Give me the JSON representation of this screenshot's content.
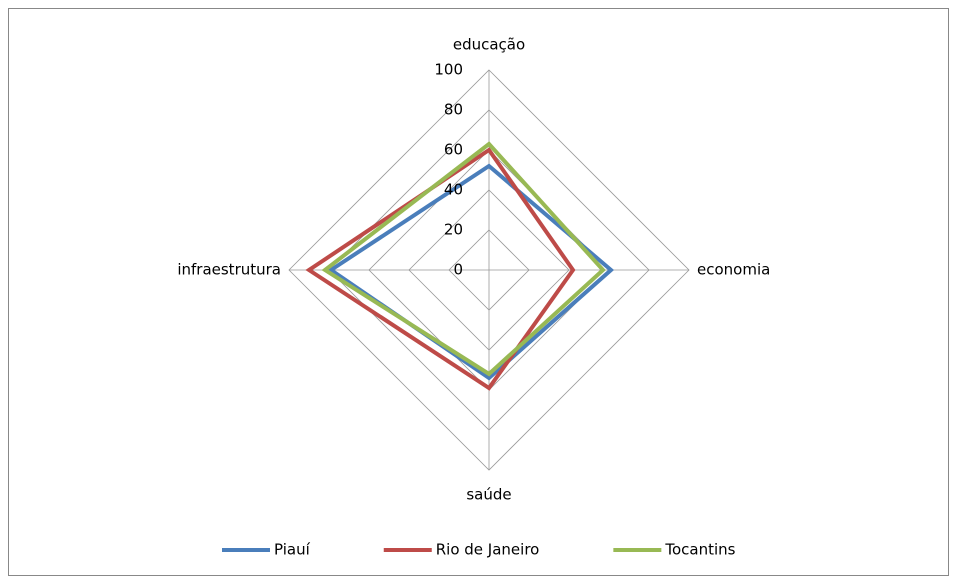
{
  "chart_data": {
    "type": "radar",
    "categories": [
      "educação",
      "economia",
      "saúde",
      "infraestrutura"
    ],
    "series": [
      {
        "name": "Piauí",
        "color": "#4a7ebb",
        "values": [
          52,
          61,
          54,
          79
        ]
      },
      {
        "name": "Rio de Janeiro",
        "color": "#be4b48",
        "values": [
          60,
          42,
          59,
          90
        ]
      },
      {
        "name": "Tocantins",
        "color": "#98b954",
        "values": [
          63,
          57,
          52,
          82
        ]
      }
    ],
    "ylim": [
      0,
      100
    ],
    "yticks": [
      0,
      20,
      40,
      60,
      80,
      100
    ],
    "grid": true,
    "legend": "bottom"
  }
}
